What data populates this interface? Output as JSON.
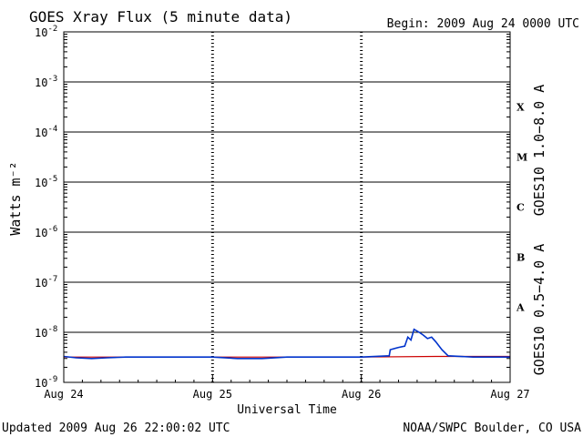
{
  "header": {
    "title": "GOES Xray Flux (5 minute data)",
    "begin_label": "Begin:  2009 Aug 24 0000 UTC"
  },
  "footer": {
    "updated": "Updated 2009 Aug 26 22:00:02 UTC",
    "source": "NOAA/SWPC Boulder, CO USA"
  },
  "colors": {
    "long_channel": "#cc0000",
    "short_channel": "#0033cc",
    "axis": "#000000"
  },
  "chart_data": {
    "type": "line",
    "title": "GOES Xray Flux (5 minute data)",
    "xlabel": "Universal Time",
    "ylabel": "Watts m⁻²",
    "y_scale": "log",
    "ylim": [
      1e-09,
      0.01
    ],
    "xlim": [
      "2009-08-24T00:00",
      "2009-08-27T00:00"
    ],
    "x_ticks": [
      "Aug 24",
      "Aug 25",
      "Aug 26",
      "Aug 27"
    ],
    "y_ticks": [
      {
        "mantissa": "10",
        "exponent": "-9",
        "value": 1e-09
      },
      {
        "mantissa": "10",
        "exponent": "-8",
        "value": 1e-08
      },
      {
        "mantissa": "10",
        "exponent": "-7",
        "value": 1e-07
      },
      {
        "mantissa": "10",
        "exponent": "-6",
        "value": 1e-06
      },
      {
        "mantissa": "10",
        "exponent": "-5",
        "value": 1e-05
      },
      {
        "mantissa": "10",
        "exponent": "-4",
        "value": 0.0001
      },
      {
        "mantissa": "10",
        "exponent": "-3",
        "value": 0.001
      },
      {
        "mantissa": "10",
        "exponent": "-2",
        "value": 0.01
      }
    ],
    "flare_classes": [
      {
        "label": "X",
        "value": 0.000316
      },
      {
        "label": "M",
        "value": 3.16e-05
      },
      {
        "label": "C",
        "value": 3.16e-06
      },
      {
        "label": "B",
        "value": 3.16e-07
      },
      {
        "label": "A",
        "value": 3.16e-08
      }
    ],
    "grid": "horizontal lines at each decade",
    "series": [
      {
        "name": "GOES10 1.0−8.0 A",
        "points": [
          [
            "2009-08-24T00:00",
            3.2e-09
          ],
          [
            "2009-08-24T12:00",
            3.2e-09
          ],
          [
            "2009-08-25T00:00",
            3.2e-09
          ],
          [
            "2009-08-25T12:00",
            3.2e-09
          ],
          [
            "2009-08-26T00:00",
            3.2e-09
          ],
          [
            "2009-08-26T12:00",
            3.3e-09
          ],
          [
            "2009-08-27T00:00",
            3.3e-09
          ]
        ]
      },
      {
        "name": "GOES10 0.5−4.0 A",
        "points": [
          [
            "2009-08-24T00:00",
            3.3e-09
          ],
          [
            "2009-08-24T02:00",
            3.1e-09
          ],
          [
            "2009-08-24T04:30",
            3e-09
          ],
          [
            "2009-08-24T07:00",
            3.1e-09
          ],
          [
            "2009-08-24T10:00",
            3.2e-09
          ],
          [
            "2009-08-24T16:00",
            3.2e-09
          ],
          [
            "2009-08-25T00:00",
            3.2e-09
          ],
          [
            "2009-08-25T04:00",
            3e-09
          ],
          [
            "2009-08-25T08:00",
            3e-09
          ],
          [
            "2009-08-25T12:00",
            3.2e-09
          ],
          [
            "2009-08-26T00:00",
            3.2e-09
          ],
          [
            "2009-08-26T04:30",
            3.4e-09
          ],
          [
            "2009-08-26T04:40",
            4.5e-09
          ],
          [
            "2009-08-26T06:00",
            5e-09
          ],
          [
            "2009-08-26T07:00",
            5.3e-09
          ],
          [
            "2009-08-26T07:30",
            8e-09
          ],
          [
            "2009-08-26T08:00",
            7e-09
          ],
          [
            "2009-08-26T08:30",
            1.15e-08
          ],
          [
            "2009-08-26T09:20",
            1e-08
          ],
          [
            "2009-08-26T10:00",
            8.8e-09
          ],
          [
            "2009-08-26T10:40",
            7.5e-09
          ],
          [
            "2009-08-26T11:20",
            8e-09
          ],
          [
            "2009-08-26T12:00",
            6.5e-09
          ],
          [
            "2009-08-26T13:00",
            4.5e-09
          ],
          [
            "2009-08-26T14:00",
            3.4e-09
          ],
          [
            "2009-08-26T18:00",
            3.2e-09
          ],
          [
            "2009-08-27T00:00",
            3.2e-09
          ]
        ]
      }
    ]
  }
}
